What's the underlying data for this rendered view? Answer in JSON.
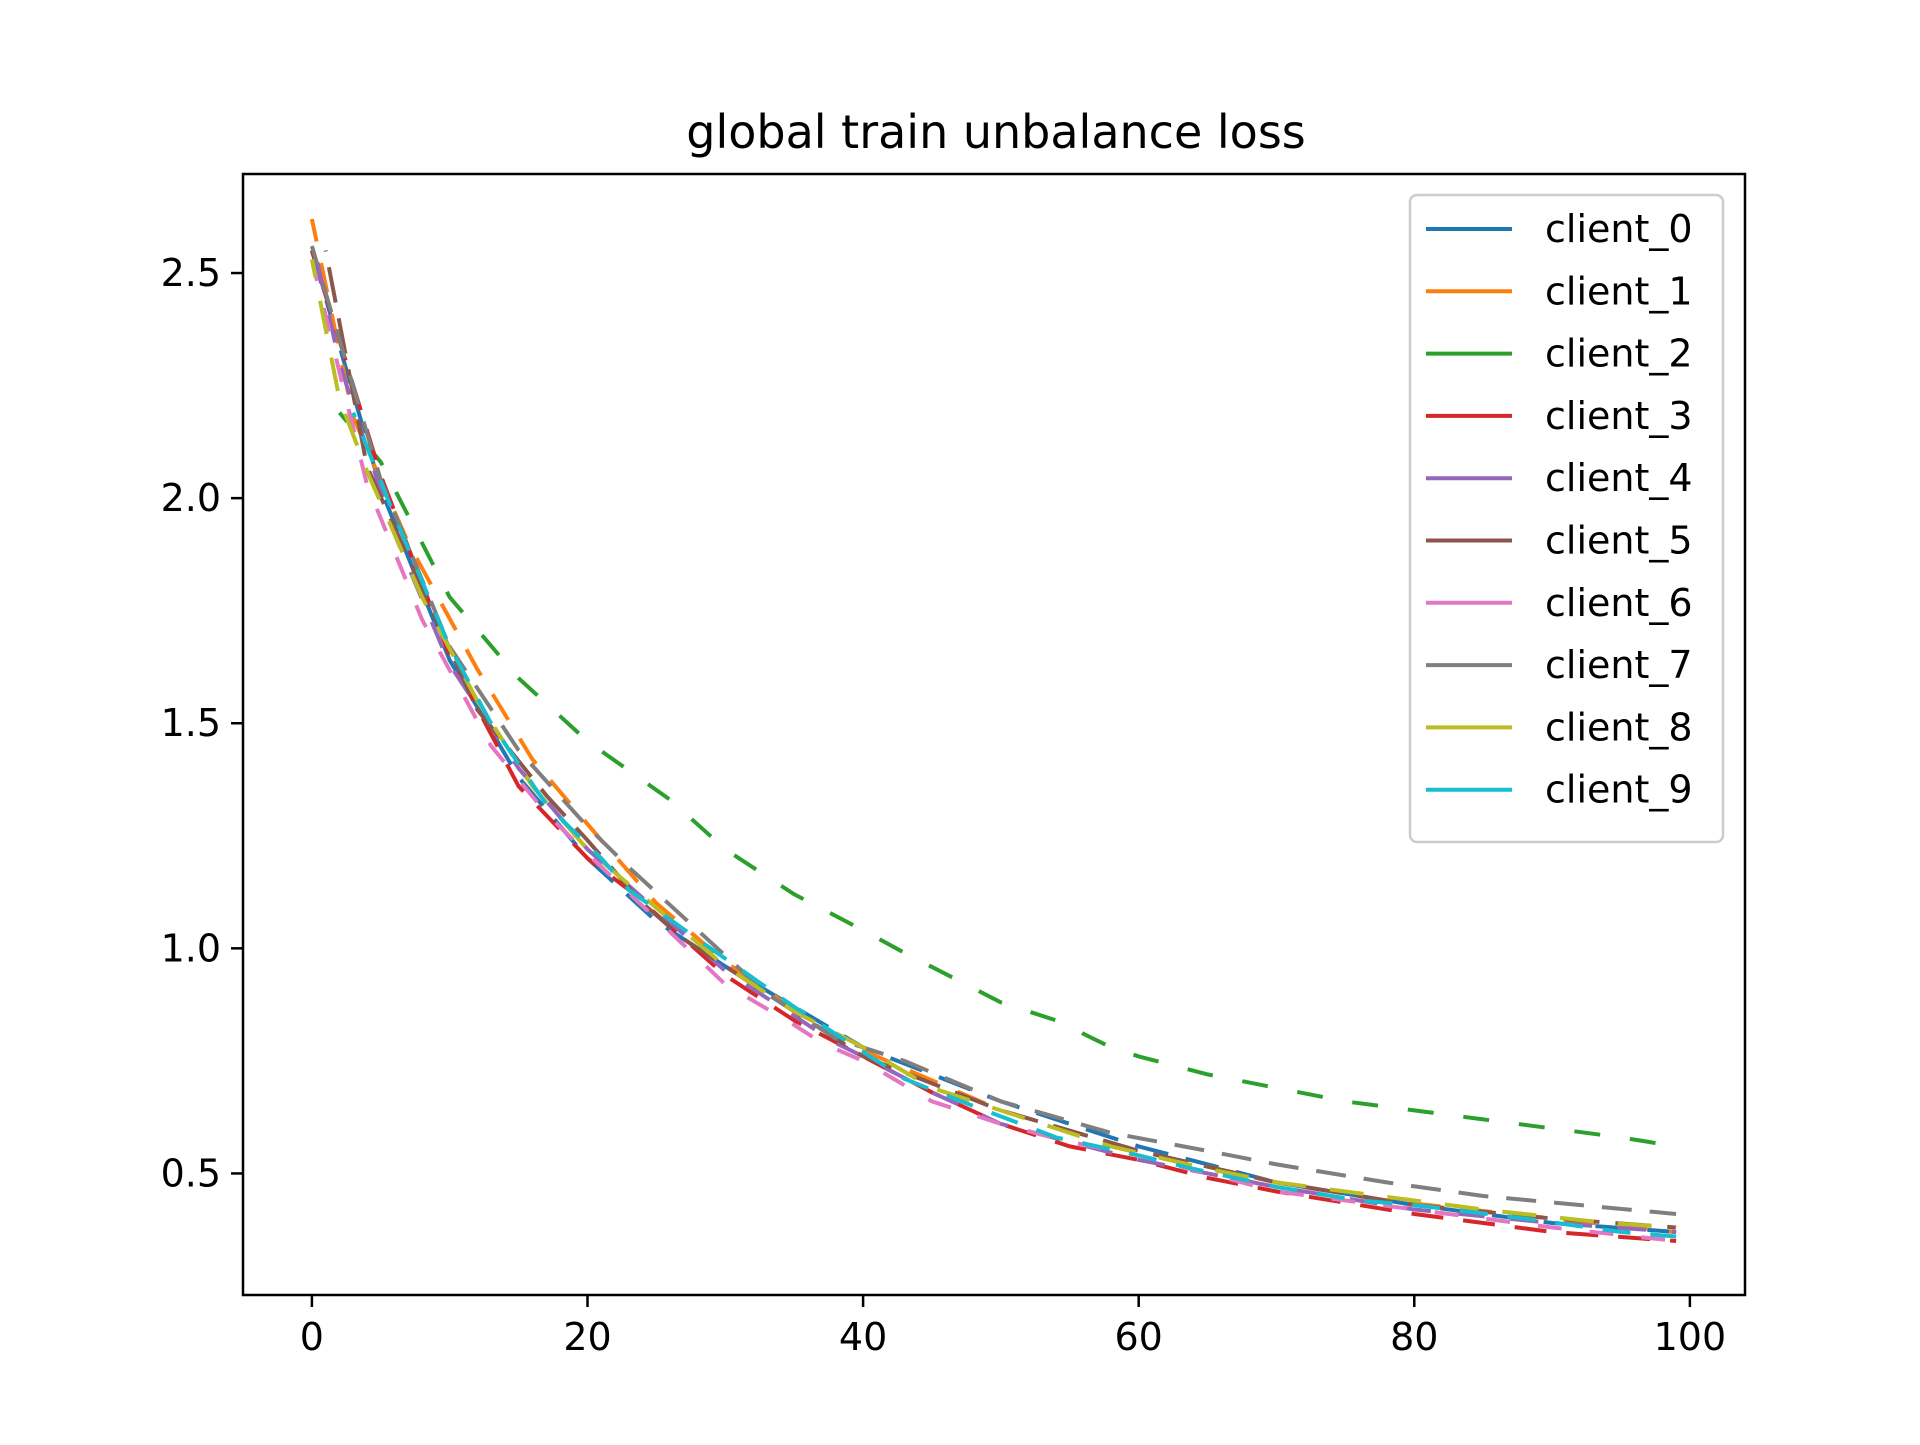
{
  "chart_data": {
    "type": "line",
    "title": "global train unbalance loss",
    "xlabel": "",
    "ylabel": "",
    "xlim": [
      -5,
      104
    ],
    "ylim": [
      0.23,
      2.72
    ],
    "xticks": [
      0,
      20,
      40,
      60,
      80,
      100
    ],
    "yticks": [
      0.5,
      1.0,
      1.5,
      2.0,
      2.5
    ],
    "xtick_labels": [
      "0",
      "20",
      "40",
      "60",
      "80",
      "100"
    ],
    "ytick_labels": [
      "0.5",
      "1.0",
      "1.5",
      "2.0",
      "2.5"
    ],
    "grid": false,
    "legend_position": "top-right",
    "line_style": "dashed",
    "series": [
      {
        "name": "client_0",
        "color": "#1f77b4",
        "x": [
          0,
          5,
          10,
          15,
          20,
          25,
          30,
          40,
          50,
          60,
          70,
          80,
          90,
          99
        ],
        "y": [
          2.55,
          2.02,
          1.64,
          1.38,
          1.2,
          1.06,
          0.96,
          0.78,
          0.66,
          0.56,
          0.48,
          0.43,
          0.39,
          0.37
        ]
      },
      {
        "name": "client_1",
        "color": "#ff7f0e",
        "x": [
          0,
          3,
          7,
          12,
          16,
          21,
          25,
          30,
          38,
          44,
          50,
          60,
          70,
          78,
          90,
          99
        ],
        "y": [
          2.62,
          2.18,
          1.9,
          1.62,
          1.42,
          1.24,
          1.1,
          0.97,
          0.8,
          0.72,
          0.64,
          0.55,
          0.48,
          0.44,
          0.4,
          0.37
        ]
      },
      {
        "name": "client_2",
        "color": "#2ca02c",
        "x": [
          2,
          5,
          10,
          15,
          20,
          26,
          30,
          35,
          40,
          43,
          50,
          55,
          56,
          58,
          60,
          65,
          70,
          75,
          80,
          85,
          90,
          95,
          99
        ],
        "y": [
          2.19,
          2.08,
          1.78,
          1.6,
          1.46,
          1.33,
          1.22,
          1.12,
          1.04,
          0.99,
          0.88,
          0.83,
          0.81,
          0.78,
          0.76,
          0.72,
          0.69,
          0.66,
          0.64,
          0.62,
          0.6,
          0.58,
          0.56
        ]
      },
      {
        "name": "client_3",
        "color": "#d62728",
        "x": [
          0,
          5,
          10,
          15,
          20,
          23,
          30,
          35,
          40,
          45,
          50,
          55,
          60,
          65,
          70,
          80,
          90,
          99
        ],
        "y": [
          2.55,
          2.05,
          1.65,
          1.36,
          1.2,
          1.13,
          0.94,
          0.84,
          0.76,
          0.68,
          0.61,
          0.56,
          0.53,
          0.49,
          0.46,
          0.41,
          0.37,
          0.35
        ]
      },
      {
        "name": "client_4",
        "color": "#9467bd",
        "x": [
          0,
          2,
          6,
          10,
          15,
          20,
          30,
          38,
          40,
          45,
          50,
          60,
          70,
          80,
          90,
          99
        ],
        "y": [
          2.58,
          2.3,
          1.92,
          1.63,
          1.4,
          1.22,
          0.95,
          0.79,
          0.76,
          0.68,
          0.61,
          0.53,
          0.47,
          0.42,
          0.39,
          0.37
        ]
      },
      {
        "name": "client_5",
        "color": "#8c564b",
        "x": [
          1,
          4,
          8,
          12,
          17,
          20,
          24,
          27,
          30,
          40,
          50,
          60,
          70,
          80,
          90,
          99
        ],
        "y": [
          2.55,
          2.07,
          1.8,
          1.53,
          1.34,
          1.24,
          1.1,
          1.02,
          0.96,
          0.76,
          0.64,
          0.55,
          0.48,
          0.43,
          0.4,
          0.38
        ]
      },
      {
        "name": "client_6",
        "color": "#e377c2",
        "x": [
          0,
          4,
          8,
          13,
          17,
          20,
          30,
          35,
          37,
          40,
          45,
          50,
          55,
          60,
          70,
          80,
          90,
          99
        ],
        "y": [
          2.53,
          2.03,
          1.73,
          1.45,
          1.3,
          1.21,
          0.92,
          0.83,
          0.79,
          0.75,
          0.66,
          0.61,
          0.57,
          0.54,
          0.46,
          0.42,
          0.38,
          0.35
        ]
      },
      {
        "name": "client_7",
        "color": "#7f7f7f",
        "x": [
          0,
          5,
          10,
          15,
          20,
          23,
          28,
          33,
          38,
          43,
          50,
          58,
          65,
          70,
          78,
          85,
          92,
          99
        ],
        "y": [
          2.56,
          2.04,
          1.67,
          1.44,
          1.27,
          1.18,
          1.04,
          0.9,
          0.8,
          0.75,
          0.66,
          0.59,
          0.55,
          0.52,
          0.48,
          0.45,
          0.43,
          0.41
        ]
      },
      {
        "name": "client_8",
        "color": "#bcbd22",
        "x": [
          0,
          2,
          4,
          8,
          12,
          16,
          20,
          30,
          35,
          40,
          45,
          52,
          58,
          65,
          70,
          75,
          80,
          85,
          94,
          99
        ],
        "y": [
          2.53,
          2.22,
          2.06,
          1.78,
          1.55,
          1.36,
          1.22,
          0.96,
          0.86,
          0.78,
          0.69,
          0.62,
          0.56,
          0.51,
          0.48,
          0.46,
          0.44,
          0.42,
          0.39,
          0.38
        ]
      },
      {
        "name": "client_9",
        "color": "#17becf",
        "x": [
          3,
          6,
          10,
          13,
          17,
          21,
          23,
          28,
          35,
          43,
          48,
          54,
          60,
          64,
          70,
          76,
          80,
          88,
          95,
          99
        ],
        "y": [
          2.19,
          1.96,
          1.67,
          1.5,
          1.32,
          1.2,
          1.13,
          1.02,
          0.87,
          0.71,
          0.65,
          0.58,
          0.54,
          0.51,
          0.47,
          0.44,
          0.43,
          0.4,
          0.37,
          0.36
        ]
      }
    ]
  }
}
